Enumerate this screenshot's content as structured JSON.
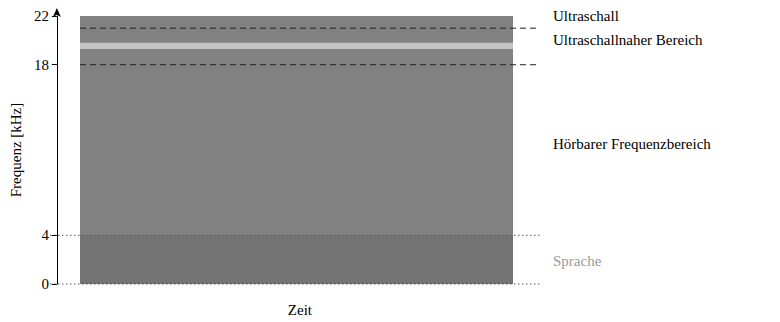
{
  "chart_data": {
    "type": "spectrogram",
    "x_label": "Zeit",
    "y_label": "Frequenz [kHz]",
    "ylim": [
      0,
      22
    ],
    "yticks": [
      0,
      4,
      18,
      22
    ],
    "tick_labels": "y",
    "grid": false,
    "bands": [
      {
        "range": [
          0,
          22
        ],
        "color": "#818181"
      },
      {
        "range": [
          0,
          4
        ],
        "color": "#737373"
      },
      {
        "range": [
          19.3,
          19.8
        ],
        "color": "#c4c4c4"
      }
    ],
    "boundaries": [
      {
        "value": 21,
        "line_style": "dashed"
      },
      {
        "value": 18,
        "line_style": "dashed"
      },
      {
        "value": 4,
        "line_style": "dotted"
      },
      {
        "value": 0,
        "line_style": "dotted"
      }
    ],
    "annotations": [
      {
        "text": "Ultraschall",
        "y": 22,
        "color": "#000000"
      },
      {
        "text": "Ultraschallnaher Bereich",
        "y": 20,
        "color": "#000000"
      },
      {
        "text": "Hörbarer Frequenzbereich",
        "y": 11.5,
        "color": "#000000"
      },
      {
        "text": "Sprache",
        "y": 1.9,
        "color": "#999999"
      }
    ]
  }
}
